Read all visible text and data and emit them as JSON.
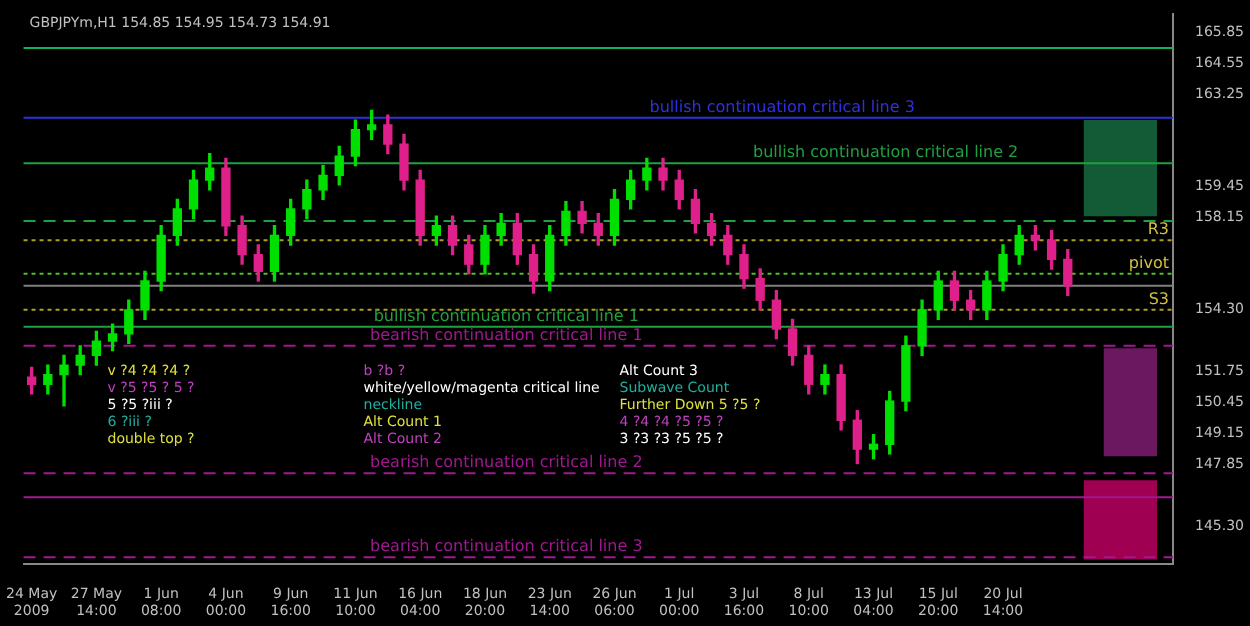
{
  "chart_data": {
    "type": "candlestick",
    "title": "GBPJPYm,H1 154.85 154.95 154.73 154.91",
    "categories": [
      "24 May 2009",
      null,
      null,
      null,
      "27 May 14:00",
      null,
      null,
      null,
      "1 Jun 08:00",
      null,
      null,
      null,
      "4 Jun 00:00",
      null,
      null,
      null,
      "9 Jun 16:00",
      null,
      null,
      null,
      "11 Jun 10:00",
      null,
      null,
      null,
      "16 Jun 04:00",
      null,
      null,
      null,
      "18 Jun 20:00",
      null,
      null,
      null,
      "23 Jun 14:00",
      null,
      null,
      null,
      "26 Jun 06:00",
      null,
      null,
      null,
      "1 Jul 00:00",
      null,
      null,
      null,
      "3 Jul 16:00",
      null,
      null,
      null,
      "8 Jul 10:00",
      null,
      null,
      null,
      "13 Jul 04:00",
      null,
      null,
      null,
      "15 Jul 20:00",
      null,
      null,
      null,
      "20 Jul 14:00",
      null,
      null,
      null,
      null,
      null,
      null,
      null,
      null,
      null,
      null
    ],
    "ohlc": [
      [
        151.5,
        151.9,
        150.8,
        151.2
      ],
      [
        151.2,
        152.0,
        150.8,
        151.6
      ],
      [
        151.6,
        152.4,
        150.3,
        152.0
      ],
      [
        152.0,
        152.8,
        151.6,
        152.4
      ],
      [
        152.4,
        153.4,
        152.0,
        153.0
      ],
      [
        153.0,
        153.7,
        152.6,
        153.3
      ],
      [
        153.3,
        154.7,
        152.9,
        154.3
      ],
      [
        154.3,
        155.9,
        153.9,
        155.5
      ],
      [
        155.5,
        157.8,
        155.1,
        157.4
      ],
      [
        157.4,
        158.9,
        157.0,
        158.5
      ],
      [
        158.5,
        160.1,
        158.1,
        159.7
      ],
      [
        159.7,
        160.8,
        159.3,
        160.2
      ],
      [
        160.2,
        160.6,
        157.4,
        157.8
      ],
      [
        157.8,
        158.2,
        156.2,
        156.6
      ],
      [
        156.6,
        157.0,
        155.5,
        155.9
      ],
      [
        155.9,
        157.8,
        155.5,
        157.4
      ],
      [
        157.4,
        158.9,
        157.0,
        158.5
      ],
      [
        158.5,
        159.7,
        158.1,
        159.3
      ],
      [
        159.3,
        160.3,
        158.9,
        159.9
      ],
      [
        159.9,
        161.1,
        159.5,
        160.7
      ],
      [
        160.7,
        162.2,
        160.3,
        161.8
      ],
      [
        161.8,
        162.6,
        161.4,
        162.0
      ],
      [
        162.0,
        162.4,
        160.8,
        161.2
      ],
      [
        161.2,
        161.6,
        159.3,
        159.7
      ],
      [
        159.7,
        160.1,
        157.0,
        157.4
      ],
      [
        157.4,
        158.2,
        157.0,
        157.8
      ],
      [
        157.8,
        158.2,
        156.6,
        157.0
      ],
      [
        157.0,
        157.4,
        155.8,
        156.2
      ],
      [
        156.2,
        157.8,
        155.8,
        157.4
      ],
      [
        157.4,
        158.3,
        157.0,
        157.9
      ],
      [
        157.9,
        158.3,
        156.2,
        156.6
      ],
      [
        156.6,
        157.0,
        155.0,
        155.5
      ],
      [
        155.5,
        157.8,
        155.1,
        157.4
      ],
      [
        157.4,
        158.8,
        157.0,
        158.4
      ],
      [
        158.4,
        158.8,
        157.5,
        157.9
      ],
      [
        157.9,
        158.3,
        157.0,
        157.4
      ],
      [
        157.4,
        159.3,
        157.0,
        158.9
      ],
      [
        158.9,
        160.1,
        158.5,
        159.7
      ],
      [
        159.7,
        160.6,
        159.3,
        160.2
      ],
      [
        160.2,
        160.6,
        159.3,
        159.7
      ],
      [
        159.7,
        160.1,
        158.5,
        158.9
      ],
      [
        158.9,
        159.3,
        157.5,
        157.9
      ],
      [
        157.9,
        158.3,
        157.0,
        157.4
      ],
      [
        157.4,
        157.8,
        156.2,
        156.6
      ],
      [
        156.6,
        157.0,
        155.2,
        155.6
      ],
      [
        155.6,
        156.0,
        154.3,
        154.7
      ],
      [
        154.7,
        155.1,
        153.1,
        153.5
      ],
      [
        153.5,
        153.9,
        152.0,
        152.4
      ],
      [
        152.4,
        152.8,
        150.8,
        151.2
      ],
      [
        151.2,
        152.0,
        150.8,
        151.6
      ],
      [
        151.6,
        152.0,
        149.3,
        149.7
      ],
      [
        149.7,
        150.1,
        147.9,
        148.5
      ],
      [
        148.5,
        149.1,
        148.1,
        148.7
      ],
      [
        148.7,
        150.9,
        148.3,
        150.5
      ],
      [
        150.5,
        153.2,
        150.1,
        152.8
      ],
      [
        152.8,
        154.7,
        152.4,
        154.3
      ],
      [
        154.3,
        155.9,
        153.9,
        155.5
      ],
      [
        155.5,
        155.9,
        154.3,
        154.7
      ],
      [
        154.7,
        155.1,
        153.9,
        154.3
      ],
      [
        154.3,
        155.9,
        153.9,
        155.5
      ],
      [
        155.5,
        157.0,
        155.1,
        156.6
      ],
      [
        156.6,
        157.8,
        156.2,
        157.4
      ],
      [
        157.4,
        157.8,
        156.8,
        157.2
      ],
      [
        157.2,
        157.6,
        156.0,
        156.4
      ],
      [
        156.4,
        156.8,
        154.9,
        155.3
      ],
      null,
      null,
      null,
      null,
      null,
      null
    ],
    "colors": [
      "#e0208a",
      "#00e000",
      "#00e000",
      "#00e000",
      "#00e000",
      "#00e000",
      "#00e000",
      "#00e000",
      "#00e000",
      "#00e000",
      "#00e000",
      "#00e000",
      "#e0208a",
      "#e0208a",
      "#e0208a",
      "#00e000",
      "#00e000",
      "#00e000",
      "#00e000",
      "#00e000",
      "#00e000",
      "#00e000",
      "#e0208a",
      "#e0208a",
      "#e0208a",
      "#00e000",
      "#e0208a",
      "#e0208a",
      "#00e000",
      "#00e000",
      "#e0208a",
      "#e0208a",
      "#00e000",
      "#00e000",
      "#e0208a",
      "#e0208a",
      "#00e000",
      "#00e000",
      "#00e000",
      "#e0208a",
      "#e0208a",
      "#e0208a",
      "#e0208a",
      "#e0208a",
      "#e0208a",
      "#e0208a",
      "#e0208a",
      "#e0208a",
      "#e0208a",
      "#00e000",
      "#e0208a",
      "#e0208a",
      "#00e000",
      "#00e000",
      "#00e000",
      "#00e000",
      "#00e000",
      "#e0208a",
      "#e0208a",
      "#00e000",
      "#00e000",
      "#00e000",
      "#e0208a",
      "#e0208a",
      "#e0208a",
      null,
      null,
      null,
      null,
      null,
      null
    ],
    "ylim": [
      143.7,
      166.6
    ],
    "yticks": [
      165.85,
      164.55,
      163.25,
      159.45,
      158.15,
      {
        "value": 154.3,
        "label": "154.30"
      },
      151.75,
      150.45,
      149.15,
      147.85,
      {
        "value": 145.3,
        "label": "145.30"
      }
    ],
    "grid": false,
    "legend": false,
    "ref_lines": [
      {
        "axis": "y",
        "value": 165.2,
        "label": null,
        "color": "#10b060",
        "line_style": "solid"
      },
      {
        "axis": "y",
        "value": 162.3,
        "label": "bullish continuation critical line 3",
        "color": "#3030e0",
        "line_style": "solid"
      },
      {
        "axis": "y",
        "value": 160.4,
        "label": "bullish continuation critical line 2",
        "color": "#20a040",
        "line_style": "solid"
      },
      {
        "axis": "y",
        "value": 158.0,
        "label": null,
        "color": "#20a040",
        "line_style": "dashed"
      },
      {
        "axis": "y",
        "value": 157.2,
        "label": "R3",
        "color": "#b0a020",
        "line_style": "dotted"
      },
      {
        "axis": "y",
        "value": 155.8,
        "label": "pivot",
        "color": "#50c020",
        "line_style": "dotted"
      },
      {
        "axis": "y",
        "value": 155.3,
        "label": null,
        "color": "#808080",
        "line_style": "solid"
      },
      {
        "axis": "y",
        "value": 154.3,
        "label": "S3",
        "color": "#b0a020",
        "line_style": "dotted"
      },
      {
        "axis": "y",
        "value": 153.6,
        "label": "bullish continuation critical line 1",
        "color": "#20a040",
        "line_style": "solid"
      },
      {
        "axis": "y",
        "value": 152.8,
        "label": "bearish continuation critical line 1",
        "color": "#a01890",
        "line_style": "dashed"
      },
      {
        "axis": "y",
        "value": 147.5,
        "label": "bearish continuation critical line 2",
        "color": "#a01890",
        "line_style": "dashed"
      },
      {
        "axis": "y",
        "value": 146.5,
        "label": null,
        "color": "#a01890",
        "line_style": "solid"
      },
      {
        "axis": "y",
        "value": 144.0,
        "label": "bearish continuation critical line 3",
        "color": "#a01890",
        "line_style": "dashed"
      }
    ],
    "bands": [
      {
        "axis": "y",
        "from": 158.2,
        "to": 162.2,
        "label": null,
        "color": "#1a7a4a"
      },
      {
        "axis": "y",
        "from": 148.2,
        "to": 152.7,
        "label": null,
        "color": "#902080"
      },
      {
        "axis": "y",
        "from": 143.9,
        "to": 147.2,
        "label": null,
        "color": "#d4006e"
      }
    ],
    "annotations": [
      "v ?4 ?4 ?4 ?",
      "v ?5 ?5 ? 5 ?",
      "5 ?5 ?iii ?",
      "6 ?iii ?",
      "double top ?",
      "b ?b ?",
      "white/yellow/magenta critical line",
      "neckline",
      "Alt Count 1",
      "Alt Count 2",
      "Alt Count 3",
      "Subwave Count",
      "Further Down 5 ?5 ?",
      "4 ?4 ?4 ?5 ?5 ?",
      "3 ?3 ?3 ?5 ?5 ?"
    ]
  }
}
